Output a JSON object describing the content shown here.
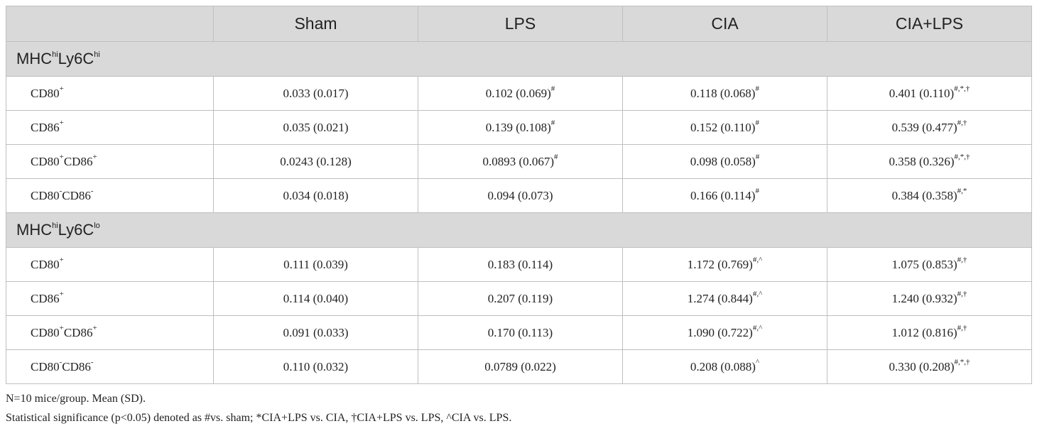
{
  "columns": [
    "",
    "Sham",
    "LPS",
    "CIA",
    "CIA+LPS"
  ],
  "groups": [
    {
      "label": {
        "base": "MHC",
        "sup1": "hi",
        "mid": "Ly6C",
        "sup2": "hi"
      },
      "rows": [
        {
          "label": {
            "a": "CD80",
            "asup": "+",
            "b": "",
            "bsup": ""
          },
          "cells": [
            {
              "v": "0.033 (0.017)",
              "s": ""
            },
            {
              "v": "0.102 (0.069)",
              "s": "#"
            },
            {
              "v": "0.118 (0.068)",
              "s": "#"
            },
            {
              "v": "0.401 (0.110)",
              "s": "#,*,†"
            }
          ]
        },
        {
          "label": {
            "a": "CD86",
            "asup": "+",
            "b": "",
            "bsup": ""
          },
          "cells": [
            {
              "v": "0.035 (0.021)",
              "s": ""
            },
            {
              "v": "0.139 (0.108)",
              "s": "#"
            },
            {
              "v": "0.152 (0.110)",
              "s": "#"
            },
            {
              "v": "0.539 (0.477)",
              "s": "#,†"
            }
          ]
        },
        {
          "label": {
            "a": "CD80",
            "asup": "+",
            "b": "CD86",
            "bsup": "+"
          },
          "cells": [
            {
              "v": "0.0243 (0.128)",
              "s": ""
            },
            {
              "v": "0.0893 (0.067)",
              "s": "#"
            },
            {
              "v": "0.098 (0.058)",
              "s": "#"
            },
            {
              "v": "0.358 (0.326)",
              "s": "#,*,†"
            }
          ]
        },
        {
          "label": {
            "a": "CD80",
            "asup": "-",
            "b": "CD86",
            "bsup": "-"
          },
          "cells": [
            {
              "v": "0.034 (0.018)",
              "s": ""
            },
            {
              "v": "0.094 (0.073)",
              "s": ""
            },
            {
              "v": "0.166 (0.114)",
              "s": "#"
            },
            {
              "v": "0.384 (0.358)",
              "s": "#,*"
            }
          ]
        }
      ]
    },
    {
      "label": {
        "base": "MHC",
        "sup1": "hi",
        "mid": "Ly6C",
        "sup2": "lo"
      },
      "rows": [
        {
          "label": {
            "a": "CD80",
            "asup": "+",
            "b": "",
            "bsup": ""
          },
          "cells": [
            {
              "v": "0.111 (0.039)",
              "s": ""
            },
            {
              "v": "0.183 (0.114)",
              "s": ""
            },
            {
              "v": "1.172 (0.769)",
              "s": "#,^"
            },
            {
              "v": "1.075 (0.853)",
              "s": "#,†"
            }
          ]
        },
        {
          "label": {
            "a": "CD86",
            "asup": "+",
            "b": "",
            "bsup": ""
          },
          "cells": [
            {
              "v": "0.114 (0.040)",
              "s": ""
            },
            {
              "v": "0.207 (0.119)",
              "s": ""
            },
            {
              "v": "1.274 (0.844)",
              "s": "#,^"
            },
            {
              "v": "1.240 (0.932)",
              "s": "#,†"
            }
          ]
        },
        {
          "label": {
            "a": "CD80",
            "asup": "+",
            "b": "CD86",
            "bsup": "+"
          },
          "cells": [
            {
              "v": "0.091 (0.033)",
              "s": ""
            },
            {
              "v": "0.170 (0.113)",
              "s": ""
            },
            {
              "v": "1.090 (0.722)",
              "s": "#,^"
            },
            {
              "v": "1.012 (0.816)",
              "s": "#,†"
            }
          ]
        },
        {
          "label": {
            "a": "CD80",
            "asup": "-",
            "b": "CD86",
            "bsup": "-"
          },
          "cells": [
            {
              "v": "0.110 (0.032)",
              "s": ""
            },
            {
              "v": "0.0789 (0.022)",
              "s": ""
            },
            {
              "v": "0.208 (0.088)",
              "s": "^"
            },
            {
              "v": "0.330 (0.208)",
              "s": "#,*,†"
            }
          ]
        }
      ]
    }
  ],
  "footnotes": [
    "N=10 mice/group. Mean (SD).",
    "Statistical significance (p<0.05) denoted as #vs. sham; *CIA+LPS vs. CIA, †CIA+LPS vs. LPS, ^CIA vs. LPS."
  ]
}
